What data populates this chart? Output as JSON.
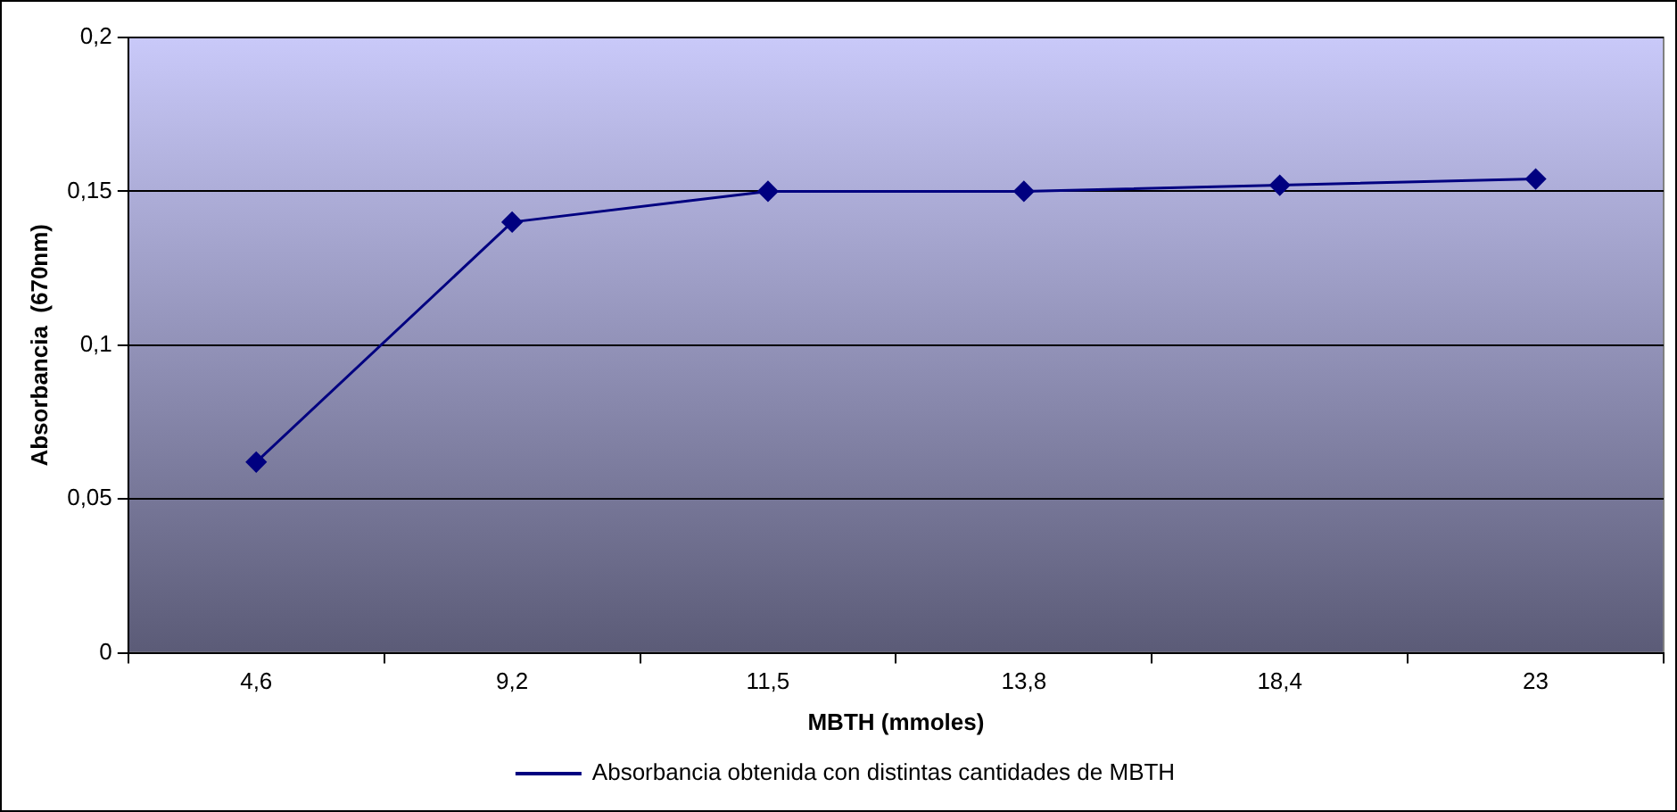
{
  "chart_data": {
    "type": "line",
    "xlabel": "MBTH (mmoles)",
    "ylabel": "Absorbancia  (670nm)",
    "categories": [
      "4,6",
      "9,2",
      "11,5",
      "13,8",
      "18,4",
      "23"
    ],
    "series": [
      {
        "name": "Absorbancia obtenida con distintas cantidades de MBTH",
        "color": "#000080",
        "values": [
          0.062,
          0.14,
          0.15,
          0.15,
          0.152,
          0.154
        ]
      }
    ],
    "ylim": [
      0,
      0.2
    ],
    "yticks": [
      {
        "value": 0,
        "label": "0"
      },
      {
        "value": 0.05,
        "label": "0,05"
      },
      {
        "value": 0.1,
        "label": "0,1"
      },
      {
        "value": 0.15,
        "label": "0,15"
      },
      {
        "value": 0.2,
        "label": "0,2"
      }
    ],
    "grid": "y",
    "legend": "bottom",
    "marker": "diamond",
    "line_style": "solid"
  }
}
